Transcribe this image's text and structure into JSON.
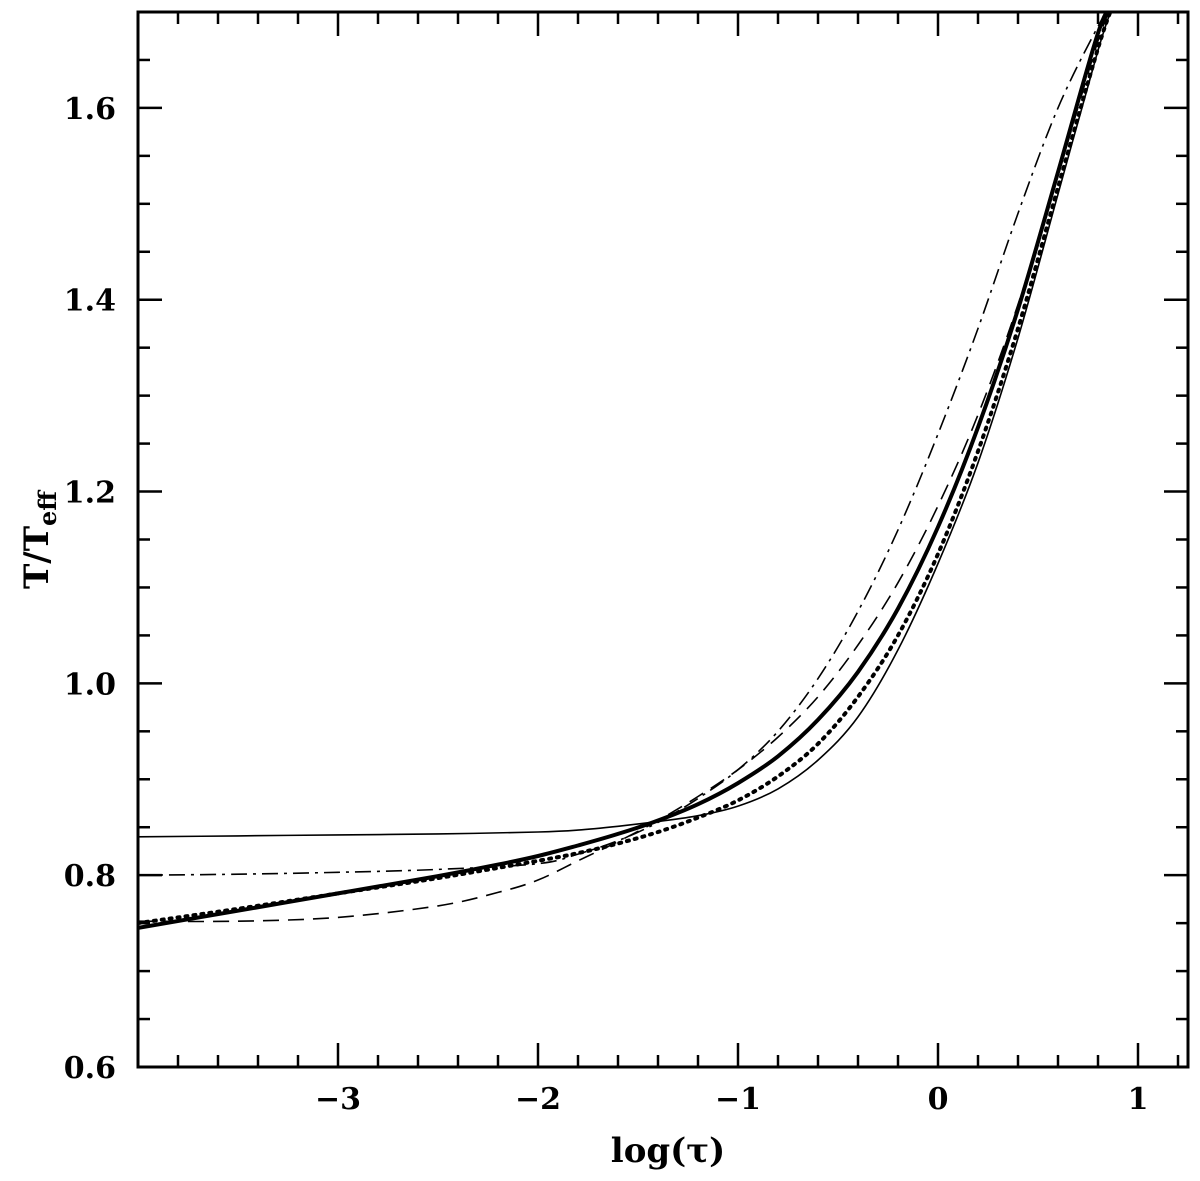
{
  "chart_data": {
    "type": "line",
    "title": "",
    "xlabel": "log(τ)",
    "ylabel": {
      "main": "T/T",
      "subscript": "eff"
    },
    "xlim": [
      -4.0,
      1.25
    ],
    "ylim": [
      0.6,
      1.7
    ],
    "x_major_ticks": [
      -3,
      -2,
      -1,
      0,
      1
    ],
    "x_tick_labels": [
      "−3",
      "−2",
      "−1",
      "0",
      "1"
    ],
    "y_major_ticks": [
      0.6,
      0.8,
      1.0,
      1.2,
      1.4,
      1.6
    ],
    "y_tick_labels": [
      "0.6",
      "0.8",
      "1.0",
      "1.2",
      "1.4",
      "1.6"
    ],
    "x_minor_step": 0.2,
    "y_minor_step": 0.05,
    "grid": false,
    "legend": "none",
    "line_color": "#000000",
    "series": [
      {
        "style": "thick-solid",
        "x": [
          -4.0,
          -3.5,
          -3.0,
          -2.5,
          -2.2,
          -2.0,
          -1.8,
          -1.6,
          -1.4,
          -1.2,
          -1.0,
          -0.8,
          -0.6,
          -0.4,
          -0.2,
          0.0,
          0.2,
          0.4,
          0.6,
          0.8,
          0.88
        ],
        "y": [
          0.745,
          0.763,
          0.781,
          0.799,
          0.811,
          0.82,
          0.831,
          0.843,
          0.857,
          0.874,
          0.896,
          0.924,
          0.962,
          1.012,
          1.078,
          1.163,
          1.267,
          1.39,
          1.533,
          1.678,
          1.71
        ]
      },
      {
        "style": "dotted",
        "x": [
          -4.0,
          -3.5,
          -3.0,
          -2.5,
          -2.0,
          -1.8,
          -1.6,
          -1.4,
          -1.2,
          -1.0,
          -0.8,
          -0.6,
          -0.4,
          -0.2,
          0.0,
          0.2,
          0.4,
          0.6,
          0.8,
          0.88
        ],
        "y": [
          0.75,
          0.765,
          0.781,
          0.797,
          0.815,
          0.823,
          0.833,
          0.845,
          0.86,
          0.878,
          0.903,
          0.937,
          0.986,
          1.05,
          1.135,
          1.242,
          1.37,
          1.517,
          1.662,
          1.71
        ]
      },
      {
        "style": "thin-solid",
        "x": [
          -4.0,
          -3.5,
          -3.0,
          -2.5,
          -2.0,
          -1.8,
          -1.6,
          -1.4,
          -1.2,
          -1.0,
          -0.8,
          -0.6,
          -0.4,
          -0.2,
          0.0,
          0.2,
          0.4,
          0.6,
          0.8,
          0.88
        ],
        "y": [
          0.84,
          0.841,
          0.842,
          0.843,
          0.845,
          0.847,
          0.851,
          0.856,
          0.862,
          0.872,
          0.89,
          0.92,
          0.965,
          1.035,
          1.125,
          1.23,
          1.36,
          1.51,
          1.66,
          1.71
        ]
      },
      {
        "style": "dash-dot",
        "x": [
          -4.0,
          -3.5,
          -3.0,
          -2.5,
          -2.0,
          -1.8,
          -1.6,
          -1.4,
          -1.2,
          -1.0,
          -0.8,
          -0.6,
          -0.4,
          -0.2,
          0.0,
          0.2,
          0.4,
          0.6,
          0.8,
          0.88
        ],
        "y": [
          0.8,
          0.801,
          0.803,
          0.806,
          0.812,
          0.822,
          0.836,
          0.855,
          0.88,
          0.91,
          0.95,
          1.005,
          1.075,
          1.16,
          1.26,
          1.37,
          1.49,
          1.6,
          1.685,
          1.71
        ]
      },
      {
        "style": "dashed",
        "x": [
          -4.0,
          -3.5,
          -3.0,
          -2.5,
          -2.2,
          -2.0,
          -1.8,
          -1.6,
          -1.4,
          -1.2,
          -1.0,
          -0.8,
          -0.6,
          -0.4,
          -0.2,
          0.0,
          0.2,
          0.4,
          0.6,
          0.8,
          0.88
        ],
        "y": [
          0.752,
          0.752,
          0.756,
          0.768,
          0.782,
          0.795,
          0.815,
          0.835,
          0.857,
          0.882,
          0.91,
          0.944,
          0.986,
          1.04,
          1.105,
          1.185,
          1.28,
          1.395,
          1.53,
          1.67,
          1.71
        ]
      }
    ]
  }
}
